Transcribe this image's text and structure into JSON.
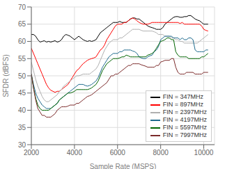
{
  "chart_data": {
    "type": "line",
    "xlabel": "Sample Rate (MSPS)",
    "ylabel": "SFDR (dBFS)",
    "xlim": [
      2000,
      10500
    ],
    "ylim": [
      30,
      70
    ],
    "xticks": [
      2000,
      4000,
      6000,
      8000,
      10000
    ],
    "yticks": [
      30,
      35,
      40,
      45,
      50,
      55,
      60,
      65,
      70
    ],
    "grid": true,
    "legend": "lower right",
    "x": [
      2000,
      2100,
      2200,
      2300,
      2400,
      2500,
      2600,
      2700,
      2800,
      2900,
      3000,
      3100,
      3200,
      3300,
      3400,
      3500,
      3600,
      3700,
      3800,
      3900,
      4000,
      4100,
      4200,
      4300,
      4400,
      4500,
      4600,
      4700,
      4800,
      4900,
      5000,
      5100,
      5200,
      5300,
      5400,
      5500,
      5600,
      5700,
      5800,
      5900,
      6000,
      6100,
      6200,
      6300,
      6400,
      6500,
      6600,
      6700,
      6800,
      6900,
      7000,
      7100,
      7200,
      7300,
      7400,
      7500,
      7600,
      7700,
      7800,
      7900,
      8000,
      8100,
      8200,
      8300,
      8400,
      8500,
      8600,
      8700,
      8800,
      8900,
      9000,
      9100,
      9200,
      9300,
      9400,
      9500,
      9600,
      9700,
      9800,
      9900,
      10000,
      10100,
      10200
    ],
    "series": [
      {
        "name": "FIN = 347MHz",
        "color": "#000000",
        "values": [
          62.0,
          62.0,
          61.5,
          60.5,
          59.8,
          60.0,
          60.2,
          59.8,
          60.0,
          59.8,
          60.0,
          60.2,
          59.8,
          60.0,
          60.5,
          61.5,
          62.0,
          61.8,
          61.5,
          61.0,
          60.5,
          61.0,
          61.5,
          61.0,
          60.5,
          60.2,
          60.0,
          60.2,
          60.0,
          60.2,
          60.5,
          61.5,
          62.5,
          63.0,
          63.5,
          64.0,
          64.5,
          65.0,
          65.5,
          65.5,
          65.5,
          65.8,
          65.5,
          65.5,
          65.5,
          66.0,
          66.5,
          66.8,
          66.8,
          66.5,
          66.5,
          66.0,
          65.5,
          65.0,
          64.5,
          64.2,
          64.0,
          63.8,
          63.5,
          63.5,
          63.5,
          64.0,
          65.0,
          65.5,
          66.0,
          66.5,
          67.0,
          67.2,
          67.2,
          67.0,
          67.0,
          67.2,
          67.2,
          67.5,
          67.5,
          67.0,
          66.5,
          66.2,
          66.0,
          65.5,
          65.0,
          65.0,
          65.0
        ]
      },
      {
        "name": "FIN = 897MHz",
        "color": "#ff0000",
        "values": [
          58.0,
          56.5,
          55.0,
          53.5,
          52.0,
          50.5,
          49.0,
          47.5,
          46.5,
          45.8,
          45.5,
          45.2,
          45.5,
          45.5,
          46.0,
          46.5,
          47.0,
          47.5,
          48.5,
          49.5,
          50.5,
          51.5,
          52.0,
          52.8,
          53.5,
          54.0,
          54.5,
          54.8,
          55.0,
          55.2,
          55.5,
          56.5,
          57.5,
          58.0,
          59.0,
          60.5,
          61.5,
          62.5,
          63.5,
          64.5,
          65.0,
          65.0,
          65.0,
          65.5,
          65.5,
          66.0,
          66.5,
          66.8,
          66.5,
          66.0,
          65.5,
          65.2,
          65.0,
          65.0,
          65.0,
          65.2,
          65.5,
          65.5,
          65.5,
          65.5,
          65.5,
          65.5,
          65.5,
          65.5,
          65.5,
          65.5,
          65.5,
          65.5,
          65.5,
          65.2,
          65.5,
          65.0,
          65.0,
          65.0,
          65.0,
          65.0,
          65.0,
          65.0,
          65.0,
          64.5,
          63.5,
          63.2,
          63.0
        ]
      },
      {
        "name": "FIN = 2397MHz",
        "color": "#b0b0b0",
        "values": [
          54.0,
          51.5,
          49.0,
          47.0,
          45.5,
          44.0,
          43.0,
          42.5,
          42.5,
          43.0,
          43.5,
          44.0,
          44.5,
          45.5,
          46.0,
          47.0,
          47.5,
          48.0,
          48.5,
          49.0,
          49.5,
          50.0,
          50.0,
          50.2,
          50.5,
          50.5,
          50.5,
          50.5,
          51.0,
          51.5,
          52.0,
          53.0,
          54.5,
          56.0,
          57.5,
          58.5,
          59.5,
          60.0,
          60.5,
          60.5,
          60.5,
          61.0,
          61.0,
          61.5,
          62.0,
          62.5,
          63.0,
          63.5,
          63.5,
          63.5,
          63.5,
          63.2,
          63.0,
          63.0,
          63.0,
          63.0,
          63.0,
          62.8,
          62.5,
          62.0,
          62.0,
          62.0,
          61.5,
          61.5,
          61.5,
          61.0,
          61.0,
          60.5,
          60.5,
          60.0,
          60.0,
          59.5,
          59.5,
          59.5,
          59.5,
          59.5,
          59.5,
          59.5,
          60.0,
          60.5,
          61.0,
          61.5,
          62.0
        ]
      },
      {
        "name": "FIN = 4197MHz",
        "color": "#1f6b8e",
        "values": [
          50.5,
          47.5,
          45.0,
          43.5,
          42.5,
          41.5,
          41.0,
          40.5,
          40.5,
          40.5,
          41.0,
          41.5,
          42.0,
          43.0,
          43.5,
          44.0,
          44.5,
          45.0,
          45.5,
          46.0,
          46.5,
          47.0,
          47.5,
          47.5,
          47.5,
          47.2,
          47.0,
          47.2,
          47.5,
          48.0,
          48.5,
          49.5,
          51.0,
          52.5,
          53.5,
          54.5,
          55.5,
          56.0,
          56.5,
          56.5,
          56.5,
          57.0,
          57.0,
          57.5,
          57.5,
          57.5,
          57.5,
          57.2,
          57.0,
          56.5,
          55.5,
          55.2,
          55.0,
          55.0,
          55.5,
          55.8,
          56.0,
          57.0,
          57.5,
          58.5,
          60.5,
          61.0,
          61.5,
          61.5,
          61.5,
          61.5,
          61.0,
          61.0,
          61.0,
          60.5,
          61.0,
          60.5,
          60.5,
          61.0,
          61.0,
          60.5,
          57.5,
          57.0,
          57.0,
          57.0,
          57.0,
          57.5,
          57.5
        ]
      },
      {
        "name": "FIN = 5597MHz",
        "color": "#006400",
        "values": [
          50.5,
          46.5,
          43.5,
          41.5,
          40.5,
          40.0,
          40.0,
          40.0,
          40.0,
          40.5,
          41.0,
          41.5,
          42.0,
          43.0,
          43.5,
          44.0,
          44.5,
          45.0,
          45.0,
          45.2,
          45.5,
          46.0,
          46.0,
          46.0,
          46.0,
          46.0,
          46.0,
          46.2,
          46.5,
          47.0,
          47.5,
          48.5,
          50.0,
          51.5,
          52.5,
          53.5,
          54.0,
          54.5,
          55.0,
          55.0,
          55.0,
          55.2,
          55.5,
          55.5,
          56.0,
          55.8,
          55.5,
          55.5,
          55.5,
          55.5,
          55.5,
          55.5,
          55.5,
          55.5,
          56.0,
          56.2,
          56.5,
          57.0,
          58.0,
          59.0,
          60.0,
          60.2,
          60.5,
          61.0,
          61.0,
          60.5,
          60.5,
          57.0,
          56.0,
          55.5,
          55.5,
          55.5,
          55.5,
          55.0,
          55.0,
          55.0,
          55.0,
          55.0,
          55.0,
          55.5,
          55.5,
          56.0,
          56.5
        ]
      },
      {
        "name": "FIN = 7997MHz",
        "color": "#7b2a2a",
        "values": [
          50.5,
          46.5,
          43.0,
          40.5,
          39.5,
          38.5,
          38.5,
          38.0,
          38.0,
          38.0,
          38.5,
          39.0,
          40.0,
          40.5,
          41.0,
          41.0,
          41.0,
          41.2,
          41.5,
          41.5,
          41.5,
          42.0,
          42.0,
          42.5,
          43.0,
          43.5,
          44.0,
          44.2,
          44.5,
          45.0,
          45.5,
          46.0,
          46.5,
          47.0,
          47.5,
          48.0,
          49.0,
          50.0,
          50.0,
          50.5,
          50.5,
          51.0,
          51.5,
          52.0,
          52.5,
          53.0,
          53.0,
          53.5,
          53.5,
          53.5,
          53.5,
          53.2,
          53.0,
          52.8,
          52.5,
          52.5,
          52.5,
          52.5,
          53.0,
          53.0,
          54.0,
          54.2,
          54.5,
          54.5,
          54.5,
          55.0,
          55.0,
          52.5,
          51.0,
          50.5,
          50.5,
          50.5,
          51.0,
          51.0,
          51.0,
          51.0,
          50.5,
          50.5,
          50.5,
          50.5,
          51.0,
          51.0,
          51.0
        ]
      }
    ]
  }
}
